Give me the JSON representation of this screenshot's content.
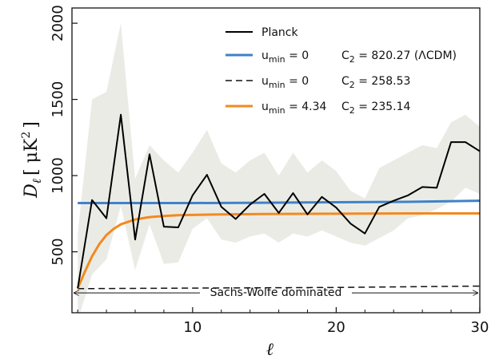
{
  "chart_data": {
    "type": "line",
    "xlabel": "ℓ",
    "ylabel_symbol": "D",
    "ylabel_subscript": "ℓ",
    "ylabel_units": "[ μK",
    "ylabel_exponent": "2",
    "ylabel_close": "]",
    "xlim": [
      1.6,
      30
    ],
    "ylim": [
      100,
      2100
    ],
    "x_ticks": [
      10,
      20,
      30
    ],
    "y_ticks": [
      500,
      1000,
      1500,
      2000
    ],
    "x_tick_labels": [
      "10",
      "20",
      "30"
    ],
    "y_tick_labels": [
      "500",
      "1000",
      "1500",
      "2000"
    ],
    "grid": false,
    "legend_position": "top-right",
    "uncertainty_band": {
      "color": "#ebebe6",
      "x": [
        2,
        3,
        4,
        5,
        6,
        7,
        8,
        9,
        10,
        11,
        12,
        13,
        14,
        15,
        16,
        17,
        18,
        19,
        20,
        21,
        22,
        23,
        24,
        25,
        26,
        27,
        28,
        29,
        30
      ],
      "lower": [
        50,
        350,
        450,
        800,
        380,
        680,
        420,
        430,
        650,
        720,
        580,
        560,
        600,
        620,
        560,
        620,
        600,
        640,
        600,
        560,
        540,
        590,
        640,
        720,
        740,
        780,
        830,
        920,
        880
      ],
      "upper": [
        620,
        1500,
        1550,
        2000,
        980,
        1200,
        1100,
        1020,
        1150,
        1300,
        1080,
        1020,
        1100,
        1150,
        1000,
        1150,
        1020,
        1100,
        1030,
        900,
        850,
        1050,
        1100,
        1150,
        1200,
        1180,
        1350,
        1400,
        1320
      ]
    },
    "series": [
      {
        "name": "Planck",
        "color": "#000000",
        "style": "solid",
        "x": [
          2,
          3,
          4,
          5,
          6,
          7,
          8,
          9,
          10,
          11,
          12,
          13,
          14,
          15,
          16,
          17,
          18,
          19,
          20,
          21,
          22,
          23,
          24,
          25,
          26,
          27,
          28,
          29,
          30
        ],
        "y": [
          260,
          840,
          720,
          1400,
          580,
          1140,
          665,
          660,
          870,
          1005,
          795,
          715,
          810,
          880,
          755,
          885,
          745,
          860,
          790,
          685,
          620,
          795,
          835,
          870,
          925,
          920,
          1220,
          1220,
          1160
        ]
      },
      {
        "name": "u_min = 0  C_2 = 820.27 (ΛCDM)",
        "label_main": "u",
        "label_sub": "min",
        "label_value": " = 0",
        "label_c": "C",
        "label_c_sub": "2",
        "label_c_value": " = 820.27 (ΛCDM)",
        "color": "#3f82c9",
        "style": "solid",
        "x": [
          2,
          5,
          10,
          15,
          20,
          25,
          30
        ],
        "y": [
          820,
          820,
          820,
          822,
          825,
          828,
          835
        ]
      },
      {
        "name": "u_min = 0  C_2 = 258.53",
        "label_main": "u",
        "label_sub": "min",
        "label_value": " = 0",
        "label_c": "C",
        "label_c_sub": "2",
        "label_c_value": " = 258.53",
        "color": "#111111",
        "style": "dashed",
        "x": [
          2,
          10,
          20,
          30
        ],
        "y": [
          258,
          262,
          266,
          275
        ]
      },
      {
        "name": "u_min = 4.34  C_2 = 235.14",
        "label_main": "u",
        "label_sub": "min",
        "label_value": " = 4.34",
        "label_c": "C",
        "label_c_sub": "2",
        "label_c_value": " = 235.14",
        "color": "#f28a1f",
        "style": "solid",
        "x": [
          2,
          2.5,
          3,
          3.5,
          4,
          4.5,
          5,
          6,
          7,
          8,
          9,
          10,
          12,
          15,
          20,
          25,
          30
        ],
        "y": [
          260,
          370,
          470,
          550,
          610,
          650,
          680,
          712,
          728,
          735,
          740,
          742,
          745,
          748,
          750,
          752,
          752
        ]
      }
    ],
    "annotation": {
      "text": "Sachs-Wolfe dominated",
      "x_start": 1.6,
      "x_end": 30,
      "y": 230
    }
  }
}
